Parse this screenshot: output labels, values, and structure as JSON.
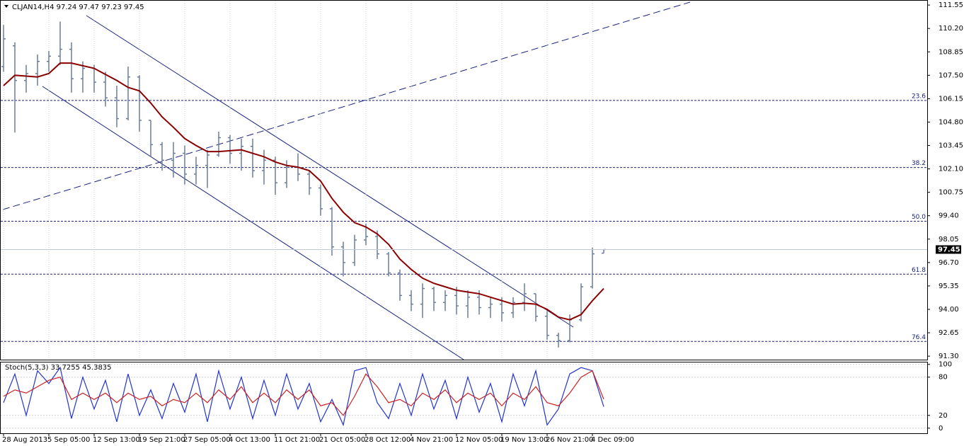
{
  "chart_data": [
    {
      "type": "ohlc",
      "title": "CLJAN14,H4  97.24 97.47 97.23 97.45",
      "categories": [
        "28 Aug 2013",
        null,
        null,
        null,
        "5 Sep 05:00",
        null,
        null,
        null,
        "12 Sep 13:00",
        null,
        null,
        null,
        "19 Sep 21:00",
        null,
        null,
        null,
        "27 Sep 05:00",
        null,
        null,
        null,
        "4 Oct 13:00",
        null,
        null,
        null,
        "11 Oct 21:00",
        null,
        null,
        null,
        "21 Oct 05:00",
        null,
        null,
        null,
        "28 Oct 12:00",
        null,
        null,
        null,
        "4 Nov 21:00",
        null,
        null,
        null,
        "12 Nov 05:00",
        null,
        null,
        null,
        "19 Nov 13:00",
        null,
        null,
        null,
        "26 Nov 21:00",
        null,
        null,
        null,
        "4 Dec 09:00",
        null
      ],
      "open": [
        108.0,
        109.2,
        107.2,
        107.6,
        108.3,
        108.6,
        109.0,
        107.3,
        107.9,
        107.1,
        106.2,
        105.0,
        107.4,
        104.9,
        103.5,
        102.6,
        103.0,
        101.8,
        102.3,
        102.9,
        103.9,
        103.0,
        103.4,
        102.0,
        102.6,
        101.3,
        102.2,
        101.8,
        101.0,
        99.8,
        97.6,
        96.7,
        98.0,
        98.2,
        97.2,
        96.1,
        94.8,
        94.3,
        95.2,
        94.4,
        94.8,
        94.2,
        94.7,
        94.1,
        94.3,
        93.8,
        94.4,
        94.9,
        93.6,
        92.5,
        92.2,
        93.4,
        95.3,
        97.24
      ],
      "high": [
        110.4,
        109.4,
        108.1,
        108.7,
        108.9,
        110.6,
        109.4,
        108.3,
        108.1,
        107.7,
        106.9,
        108.0,
        107.5,
        104.9,
        103.65,
        103.65,
        103.45,
        102.8,
        103.2,
        104.25,
        104.05,
        103.85,
        103.85,
        103.2,
        102.8,
        102.6,
        103.0,
        102.0,
        101.2,
        99.9,
        97.9,
        98.3,
        98.95,
        98.55,
        97.3,
        96.3,
        95.1,
        95.5,
        95.3,
        95.1,
        95.3,
        95.1,
        95.1,
        94.7,
        94.7,
        94.7,
        95.5,
        94.9,
        93.9,
        92.65,
        93.7,
        95.5,
        97.55,
        97.47
      ],
      "low": [
        107.7,
        104.2,
        106.5,
        106.9,
        107.7,
        108.1,
        106.5,
        106.5,
        106.5,
        105.7,
        104.5,
        104.9,
        104.25,
        102.8,
        102.0,
        101.6,
        101.2,
        101.2,
        101.0,
        102.8,
        102.4,
        102.0,
        101.6,
        101.2,
        100.6,
        101.0,
        101.4,
        100.6,
        99.4,
        97.1,
        95.9,
        96.5,
        97.7,
        96.9,
        95.9,
        94.5,
        93.9,
        93.5,
        93.9,
        93.9,
        93.7,
        93.5,
        93.7,
        93.5,
        93.3,
        93.5,
        93.9,
        93.3,
        92.25,
        91.8,
        92.1,
        93.3,
        95.2,
        97.23
      ],
      "close": [
        109.6,
        107.2,
        107.6,
        108.3,
        108.6,
        109.0,
        107.3,
        107.9,
        107.1,
        106.2,
        105.0,
        107.4,
        104.9,
        103.5,
        102.6,
        103.0,
        101.8,
        102.3,
        102.9,
        103.9,
        103.0,
        103.4,
        102.0,
        102.6,
        101.3,
        102.2,
        101.8,
        101.0,
        99.8,
        97.6,
        96.7,
        98.0,
        98.2,
        97.2,
        96.1,
        94.8,
        94.3,
        95.2,
        94.4,
        94.8,
        94.2,
        94.7,
        94.1,
        94.3,
        93.8,
        94.4,
        94.9,
        93.6,
        92.5,
        92.2,
        93.4,
        95.3,
        97.2,
        97.45
      ],
      "color": "#6b7c99",
      "ma_values": [
        106.9,
        107.5,
        107.45,
        107.4,
        107.6,
        108.2,
        108.2,
        108.05,
        107.9,
        107.55,
        107.2,
        106.8,
        106.6,
        105.9,
        105.1,
        104.5,
        103.85,
        103.45,
        103.1,
        103.1,
        103.15,
        103.2,
        103.0,
        102.8,
        102.5,
        102.3,
        102.2,
        102.0,
        101.4,
        100.4,
        99.6,
        99.0,
        98.75,
        98.35,
        97.75,
        96.9,
        96.3,
        95.8,
        95.5,
        95.3,
        95.1,
        95.0,
        94.9,
        94.7,
        94.5,
        94.3,
        94.35,
        94.3,
        94.0,
        93.55,
        93.4,
        93.7,
        94.5,
        95.2
      ],
      "ma_color": "#8b0000",
      "fib_levels": [
        {
          "label": "23.6",
          "price": 106.05
        },
        {
          "label": "38.2",
          "price": 102.18
        },
        {
          "label": "50.0",
          "price": 99.08
        },
        {
          "label": "61.8",
          "price": 96.03
        },
        {
          "label": "76.4",
          "price": 92.15
        }
      ],
      "fib_color": "#1a237e",
      "ylim": [
        91.1,
        111.8
      ],
      "yticks": [
        111.55,
        {
          "value": 110.2,
          "label": "110.20"
        },
        108.85,
        {
          "value": 107.5,
          "label": "107.50"
        },
        106.15,
        {
          "value": 104.8,
          "label": "104.80"
        },
        103.45,
        {
          "value": 102.1,
          "label": "102.10"
        },
        100.75,
        {
          "value": 99.4,
          "label": "99.40"
        },
        98.05,
        {
          "value": 96.7,
          "label": "96.70"
        },
        95.35,
        {
          "value": 94.0,
          "label": "94.00"
        },
        92.65,
        {
          "value": 91.3,
          "label": "91.30"
        }
      ],
      "grid": true
    },
    {
      "type": "stochastic",
      "title": "Stoch(5,3,3) 33.7255 45.3835",
      "k_values": [
        40,
        85,
        20,
        90,
        70,
        95,
        15,
        80,
        30,
        75,
        10,
        85,
        20,
        60,
        15,
        70,
        25,
        85,
        10,
        90,
        30,
        80,
        15,
        75,
        20,
        85,
        30,
        70,
        10,
        45,
        5,
        90,
        95,
        40,
        15,
        70,
        20,
        85,
        30,
        75,
        15,
        80,
        25,
        70,
        10,
        85,
        35,
        90,
        5,
        30,
        85,
        95,
        90,
        33.7255
      ],
      "d_values": [
        50,
        60,
        55,
        65,
        75,
        80,
        45,
        55,
        45,
        55,
        40,
        55,
        45,
        50,
        35,
        45,
        40,
        55,
        40,
        60,
        45,
        65,
        40,
        55,
        40,
        60,
        45,
        60,
        35,
        40,
        20,
        50,
        85,
        65,
        40,
        45,
        35,
        55,
        45,
        60,
        40,
        55,
        45,
        55,
        35,
        55,
        45,
        65,
        40,
        35,
        55,
        80,
        90,
        45.3835
      ],
      "k_color": "#2233cc",
      "d_color": "#cc2222",
      "ylim": [
        -8,
        103
      ],
      "yticks": [
        0,
        20,
        80,
        100
      ],
      "grid": true
    }
  ]
}
